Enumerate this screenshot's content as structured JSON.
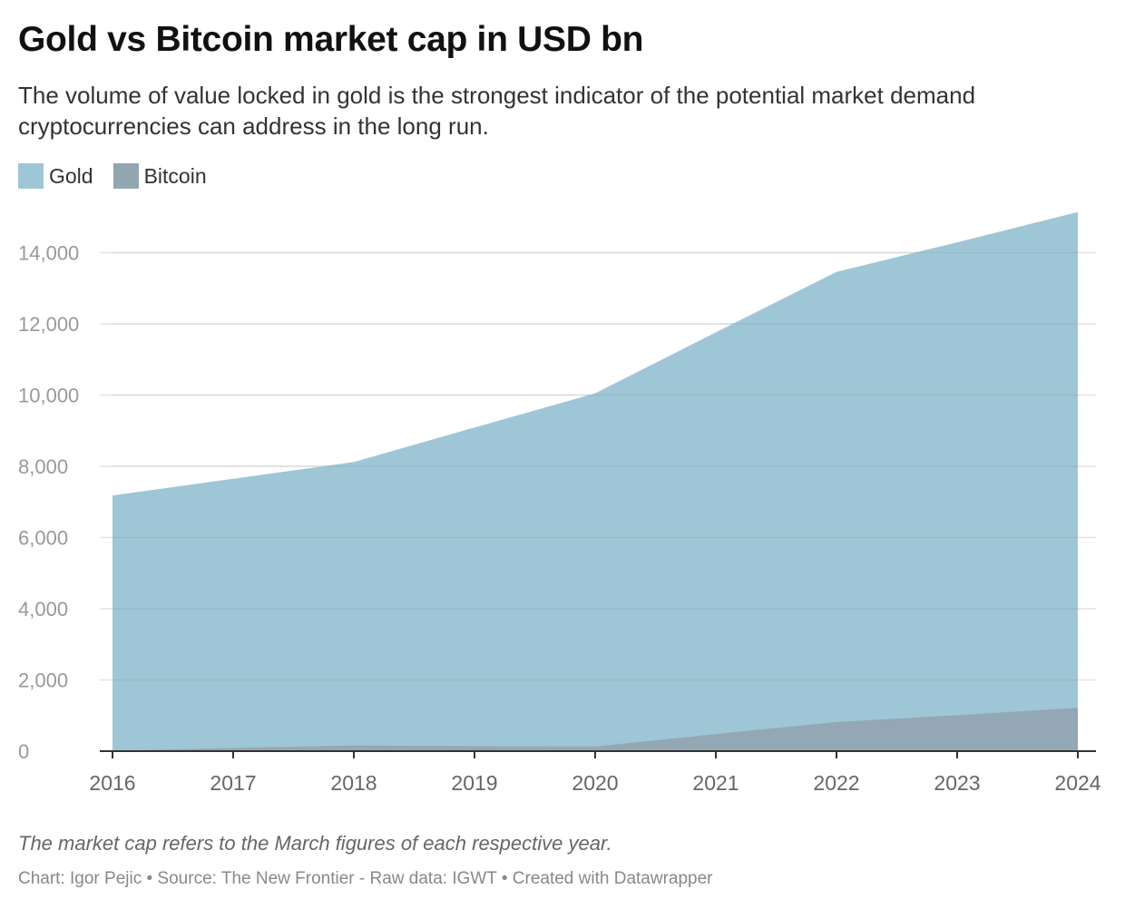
{
  "chart_data": {
    "type": "area",
    "title": "Gold vs Bitcoin market cap in USD bn",
    "subtitle": "The volume of value locked in gold is the strongest indicator of the potential market demand cryptocurrencies can address in the long run.",
    "xlabel": "",
    "ylabel": "",
    "x": [
      2016,
      2017,
      2018,
      2019,
      2020,
      2021,
      2022,
      2023,
      2024
    ],
    "x_tick_labels": [
      "2016",
      "2017",
      "2018",
      "2019",
      "2020",
      "2021",
      "2022",
      "2023",
      "2024"
    ],
    "ylim": [
      0,
      15500
    ],
    "y_ticks": [
      0,
      2000,
      4000,
      6000,
      8000,
      10000,
      12000,
      14000
    ],
    "y_tick_labels": [
      "0",
      "2,000",
      "4,000",
      "6,000",
      "8,000",
      "10,000",
      "12,000",
      "14,000"
    ],
    "grid": true,
    "stacked": false,
    "legend_position": "top-left",
    "series": [
      {
        "name": "Gold",
        "color": "#9fc6d6",
        "values": [
          7180,
          7650,
          8120,
          9090,
          10050,
          11760,
          13460,
          14290,
          15140
        ]
      },
      {
        "name": "Bitcoin",
        "color": "#92a6b2",
        "values": [
          10,
          90,
          160,
          140,
          130,
          480,
          820,
          1010,
          1220
        ]
      }
    ],
    "note": "The market cap refers to the March figures of each respective year.",
    "credits": "Chart: Igor Pejic • Source: The New Frontier - Raw data: IGWT • Created with Datawrapper"
  }
}
